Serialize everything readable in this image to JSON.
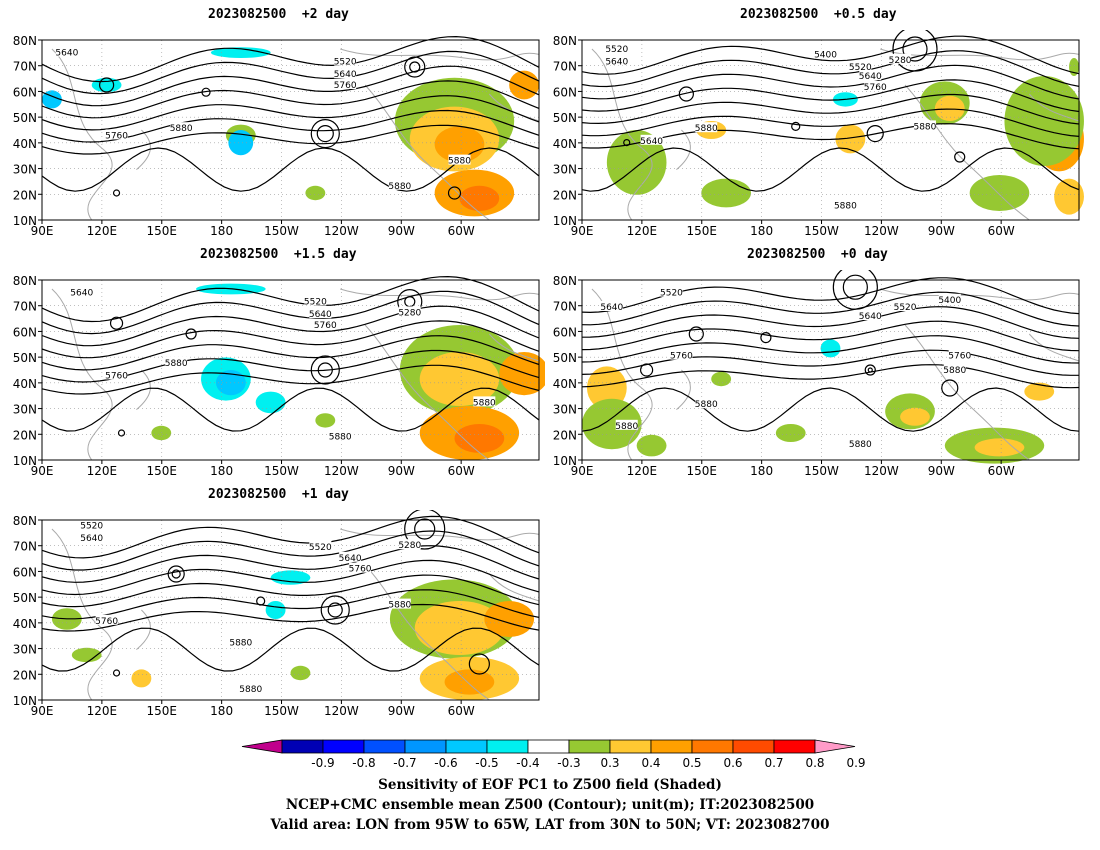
{
  "panels": [
    {
      "id": "p2",
      "title": "2023082500  +2 day"
    },
    {
      "id": "p05",
      "title": "2023082500  +0.5 day"
    },
    {
      "id": "p15",
      "title": "2023082500  +1.5 day"
    },
    {
      "id": "p0",
      "title": "2023082500  +0 day"
    },
    {
      "id": "p1",
      "title": "2023082500  +1 day"
    }
  ],
  "lat_ticks": [
    "80N",
    "70N",
    "60N",
    "50N",
    "40N",
    "30N",
    "20N",
    "10N"
  ],
  "lon_ticks": [
    "90E",
    "120E",
    "150E",
    "180",
    "150W",
    "120W",
    "90W",
    "60W"
  ],
  "contour_levels": [
    "5280",
    "5400",
    "5520",
    "5640",
    "5760",
    "5880"
  ],
  "panel_contour_labels": {
    "p2": [
      [
        "5640",
        0.05,
        0.07
      ],
      [
        "5520",
        0.61,
        0.12
      ],
      [
        "5640",
        0.61,
        0.19
      ],
      [
        "5760",
        0.61,
        0.25
      ],
      [
        "5760",
        0.15,
        0.53
      ],
      [
        "5880",
        0.28,
        0.49
      ],
      [
        "5880",
        0.84,
        0.67
      ],
      [
        "5880",
        0.72,
        0.81
      ]
    ],
    "p05": [
      [
        "5520",
        0.07,
        0.05
      ],
      [
        "5640",
        0.07,
        0.12
      ],
      [
        "5400",
        0.49,
        0.08
      ],
      [
        "5280",
        0.64,
        0.11
      ],
      [
        "5520",
        0.56,
        0.15
      ],
      [
        "5640",
        0.58,
        0.2
      ],
      [
        "5760",
        0.59,
        0.26
      ],
      [
        "5880",
        0.25,
        0.49
      ],
      [
        "5640",
        0.14,
        0.56
      ],
      [
        "5880",
        0.69,
        0.48
      ],
      [
        "5880",
        0.53,
        0.92
      ]
    ],
    "p15": [
      [
        "5640",
        0.08,
        0.07
      ],
      [
        "5520",
        0.55,
        0.12
      ],
      [
        "5640",
        0.56,
        0.19
      ],
      [
        "5760",
        0.57,
        0.25
      ],
      [
        "5280",
        0.74,
        0.18
      ],
      [
        "5760",
        0.15,
        0.53
      ],
      [
        "5880",
        0.27,
        0.46
      ],
      [
        "5880",
        0.89,
        0.68
      ],
      [
        "5880",
        0.6,
        0.87
      ]
    ],
    "p0": [
      [
        "5520",
        0.18,
        0.07
      ],
      [
        "5640",
        0.06,
        0.15
      ],
      [
        "5400",
        0.74,
        0.11
      ],
      [
        "5520",
        0.65,
        0.15
      ],
      [
        "5640",
        0.58,
        0.2
      ],
      [
        "5760",
        0.2,
        0.42
      ],
      [
        "5760",
        0.76,
        0.42
      ],
      [
        "5880",
        0.75,
        0.5
      ],
      [
        "5880",
        0.25,
        0.69
      ],
      [
        "5880",
        0.09,
        0.81
      ],
      [
        "5880",
        0.56,
        0.91
      ]
    ],
    "p1": [
      [
        "5520",
        0.1,
        0.03
      ],
      [
        "5640",
        0.1,
        0.1
      ],
      [
        "5280",
        0.74,
        0.14
      ],
      [
        "5520",
        0.56,
        0.15
      ],
      [
        "5640",
        0.62,
        0.21
      ],
      [
        "5760",
        0.64,
        0.27
      ],
      [
        "5880",
        0.72,
        0.47
      ],
      [
        "5760",
        0.13,
        0.56
      ],
      [
        "5880",
        0.4,
        0.68
      ],
      [
        "5880",
        0.42,
        0.94
      ]
    ]
  },
  "colorbar": {
    "colors": [
      "#c0008c",
      "#0000b4",
      "#0000ff",
      "#0050ff",
      "#0096ff",
      "#00c8ff",
      "#00f0f0",
      "#ffffff",
      "#96c832",
      "#ffc832",
      "#ffa000",
      "#ff7800",
      "#ff4b00",
      "#ff0000",
      "#ff9bc8"
    ],
    "labels": [
      "-0.9",
      "-0.8",
      "-0.7",
      "-0.6",
      "-0.5",
      "-0.4",
      "-0.3",
      "0.3",
      "0.4",
      "0.5",
      "0.6",
      "0.7",
      "0.8",
      "0.9"
    ]
  },
  "captions": {
    "line1": "Sensitivity of EOF PC1 to Z500 field (Shaded)",
    "line2": "NCEP+CMC ensemble mean Z500 (Contour); unit(m); IT:2023082500",
    "line3": "Valid area: LON from 95W to 65W, LAT from 30N to 50N; VT: 2023082700"
  }
}
